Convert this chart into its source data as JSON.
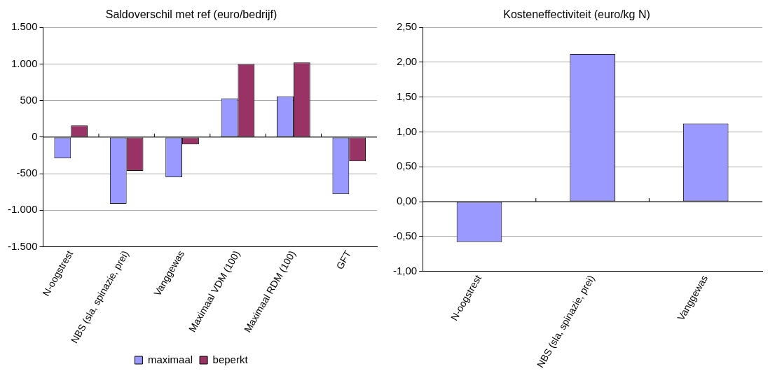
{
  "chart_data": [
    {
      "type": "bar",
      "title": "Saldoverschil met ref (euro/bedrijf)",
      "categories": [
        "N-oogstrest",
        "NBS (sla, spinazie, prei)",
        "Vanggewas",
        "Maximaal VDM (100)",
        "Maximaal RDM (100)",
        "GFT"
      ],
      "series": [
        {
          "name": "maximaal",
          "color": "#9999ff",
          "values": [
            -290,
            -910,
            -550,
            530,
            560,
            -780
          ]
        },
        {
          "name": "beperkt",
          "color": "#993366",
          "values": [
            160,
            -460,
            -100,
            1000,
            1020,
            -330
          ]
        }
      ],
      "ylim": [
        -1500,
        1500
      ],
      "yticks": [
        {
          "value": -1500,
          "label": "-1.500"
        },
        {
          "value": -1000,
          "label": "-1.000"
        },
        -500,
        0,
        500,
        {
          "value": 1000,
          "label": "1.000"
        },
        {
          "value": 1500,
          "label": "1.500"
        }
      ],
      "grid": "y",
      "legend": "bottom"
    },
    {
      "type": "bar",
      "title": "Kosteneffectiviteit (euro/kg N)",
      "categories": [
        "N-oogstrest",
        "NBS (sla, spinazie, prei)",
        "Vanggewas"
      ],
      "series": [
        {
          "color": "#9999ff",
          "values": [
            -0.58,
            2.12,
            1.12
          ]
        }
      ],
      "ylim": [
        -1,
        2.5
      ],
      "yticks": [
        {
          "value": -1,
          "label": "-1,00"
        },
        {
          "value": -0.5,
          "label": "-0,50"
        },
        {
          "value": 0,
          "label": "0,00"
        },
        {
          "value": 0.5,
          "label": "0,50"
        },
        {
          "value": 1,
          "label": "1,00"
        },
        {
          "value": 1.5,
          "label": "1,50"
        },
        {
          "value": 2,
          "label": "2,00"
        },
        {
          "value": 2.5,
          "label": "2,50"
        }
      ],
      "grid": "y",
      "legend": false
    }
  ]
}
